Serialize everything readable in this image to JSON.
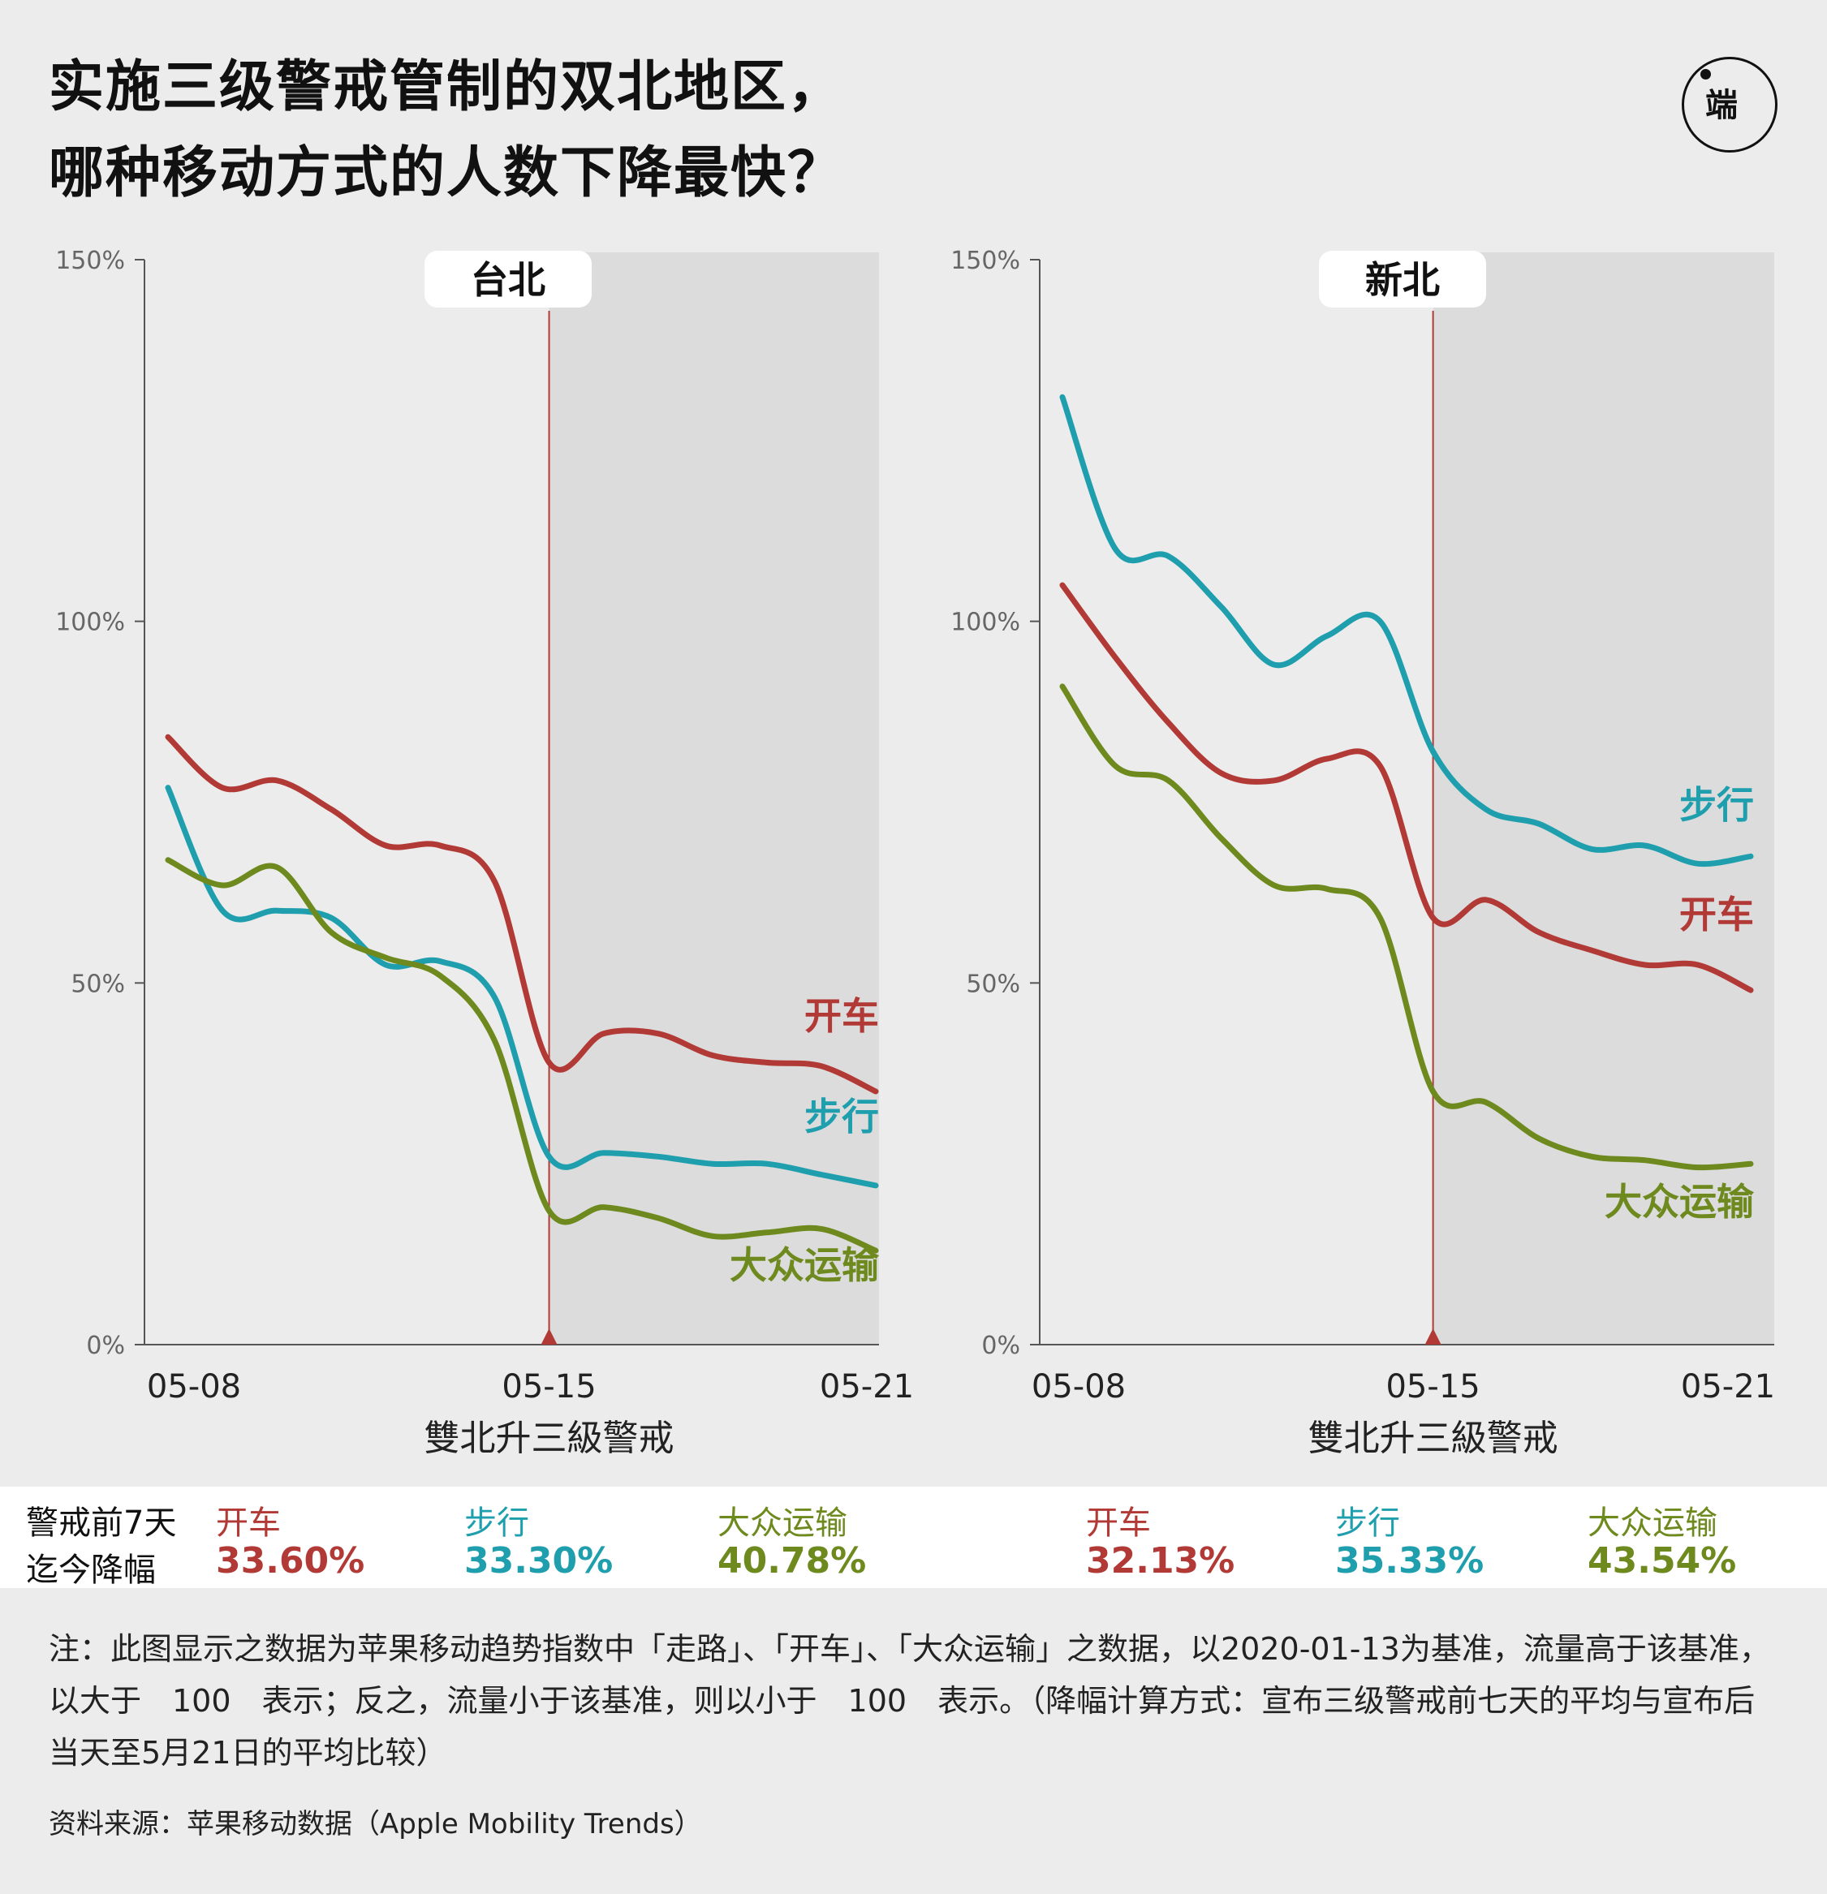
{
  "title": {
    "line1": "实施三级警戒管制的双北地区，",
    "line2": "哪种移动方式的人数下降最快？"
  },
  "logo": {
    "icon": "initium-logo-icon",
    "text": "端"
  },
  "colors": {
    "drive": "#b23a36",
    "walk": "#1f9fad",
    "transit": "#6e8a1e",
    "shade": "#dcdcdc",
    "background": "#ececec"
  },
  "chart_data": [
    {
      "type": "line",
      "title": "台北",
      "x": [
        "05-08",
        "05-09",
        "05-10",
        "05-11",
        "05-12",
        "05-13",
        "05-14",
        "05-15",
        "05-16",
        "05-17",
        "05-18",
        "05-19",
        "05-20",
        "05-21"
      ],
      "xticks": [
        "05-08",
        "05-15",
        "05-21"
      ],
      "xlabel": "雙北升三級警戒",
      "ylim": [
        0,
        150
      ],
      "yticks": [
        "0%",
        "50%",
        "100%",
        "150%"
      ],
      "marker": {
        "x": "05-15",
        "shaded_after": true
      },
      "grid": false,
      "series": [
        {
          "name": "开车",
          "key": "drive",
          "values": [
            84,
            77,
            78,
            74,
            69,
            69,
            64,
            39,
            43,
            43,
            40,
            39,
            38.5,
            35
          ]
        },
        {
          "name": "步行",
          "key": "walk",
          "values": [
            77,
            60,
            60,
            59,
            52.5,
            53,
            48,
            26,
            26.5,
            26,
            25,
            25,
            23.5,
            22
          ]
        },
        {
          "name": "大众运输",
          "key": "transit",
          "values": [
            67,
            63.5,
            66,
            57,
            53.5,
            51,
            42,
            18.5,
            19,
            17.5,
            15,
            15.5,
            16,
            13
          ]
        }
      ]
    },
    {
      "type": "line",
      "title": "新北",
      "x": [
        "05-08",
        "05-09",
        "05-10",
        "05-11",
        "05-12",
        "05-13",
        "05-14",
        "05-15",
        "05-16",
        "05-17",
        "05-18",
        "05-19",
        "05-20",
        "05-21"
      ],
      "xticks": [
        "05-08",
        "05-15",
        "05-21"
      ],
      "xlabel": "雙北升三級警戒",
      "ylim": [
        0,
        150
      ],
      "yticks": [
        "0%",
        "50%",
        "100%",
        "150%"
      ],
      "marker": {
        "x": "05-15",
        "shaded_after": true
      },
      "grid": false,
      "series": [
        {
          "name": "步行",
          "key": "walk",
          "values": [
            131,
            110,
            109,
            102,
            94,
            98,
            100,
            82,
            74,
            72,
            68.5,
            69,
            66.5,
            67.5
          ]
        },
        {
          "name": "开车",
          "key": "drive",
          "values": [
            105,
            95,
            86,
            79,
            78,
            81,
            80,
            59,
            61.5,
            57,
            54.5,
            52.5,
            52.5,
            49
          ]
        },
        {
          "name": "大众运输",
          "key": "transit",
          "values": [
            91,
            80,
            78,
            70,
            63.5,
            63,
            59,
            35,
            33.5,
            28.5,
            26,
            25.5,
            24.5,
            25
          ]
        }
      ]
    }
  ],
  "stats": {
    "row1_label": "警戒前7天",
    "row2_label": "迄今降幅",
    "taipei": [
      {
        "name": "开车",
        "key": "drive",
        "value": "33.60%"
      },
      {
        "name": "步行",
        "key": "walk",
        "value": "33.30%"
      },
      {
        "name": "大众运输",
        "key": "transit",
        "value": "40.78%"
      }
    ],
    "newtaipei": [
      {
        "name": "开车",
        "key": "drive",
        "value": "32.13%"
      },
      {
        "name": "步行",
        "key": "walk",
        "value": "35.33%"
      },
      {
        "name": "大众运输",
        "key": "transit",
        "value": "43.54%"
      }
    ]
  },
  "note": "注：此图显示之数据为苹果移动趋势指数中「走路」、「开车」、「大众运输」之数据，以2020-01-13为基准，流量高于该基准，以大于　100　表示；反之，流量小于该基准，则以小于　100　表示。（降幅计算方式：宣布三级警戒前七天的平均与宣布后当天至5月21日的平均比较）",
  "source": "资料来源：苹果移动数据（Apple Mobility Trends）"
}
